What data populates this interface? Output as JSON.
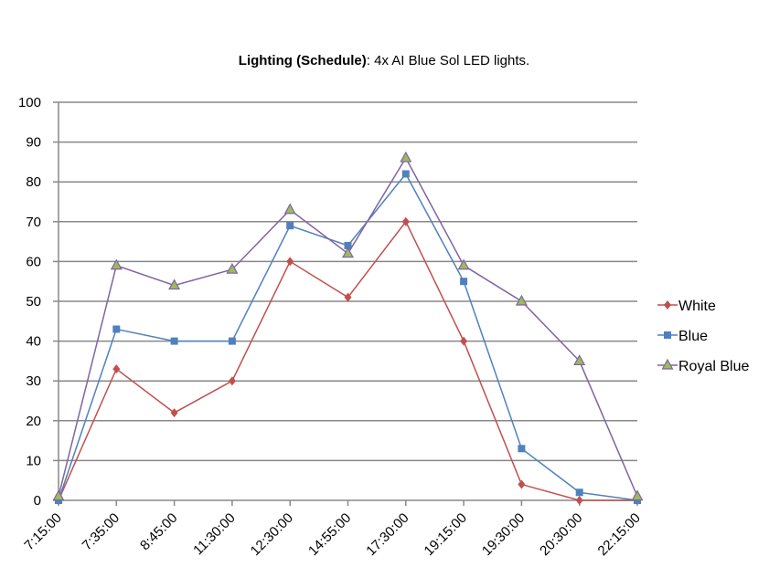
{
  "chart_data": {
    "type": "line",
    "title_bold": "Lighting (Schedule)",
    "title_rest": ": 4x AI Blue Sol LED lights.",
    "categories": [
      "7:15:00",
      "7:35:00",
      "8:45:00",
      "11:30:00",
      "12:30:00",
      "14:55:00",
      "17:30:00",
      "19:15:00",
      "19:30:00",
      "20:30:00",
      "22:15:00"
    ],
    "ylim": [
      0,
      100
    ],
    "yticks": [
      0,
      10,
      20,
      30,
      40,
      50,
      60,
      70,
      80,
      90,
      100
    ],
    "grid": true,
    "legend_position": "right",
    "series": [
      {
        "name": "White",
        "color": "#c0504d",
        "marker": "diamond",
        "values": [
          0,
          33,
          22,
          30,
          60,
          51,
          70,
          40,
          4,
          0,
          0
        ]
      },
      {
        "name": "Blue",
        "color": "#4f81bd",
        "marker": "square",
        "values": [
          0,
          43,
          40,
          40,
          69,
          64,
          82,
          55,
          13,
          2,
          0
        ]
      },
      {
        "name": "Royal Blue",
        "color": "#8064a2",
        "marker": "triangle",
        "values": [
          1,
          59,
          54,
          58,
          73,
          62,
          86,
          59,
          50,
          35,
          1
        ]
      }
    ]
  }
}
